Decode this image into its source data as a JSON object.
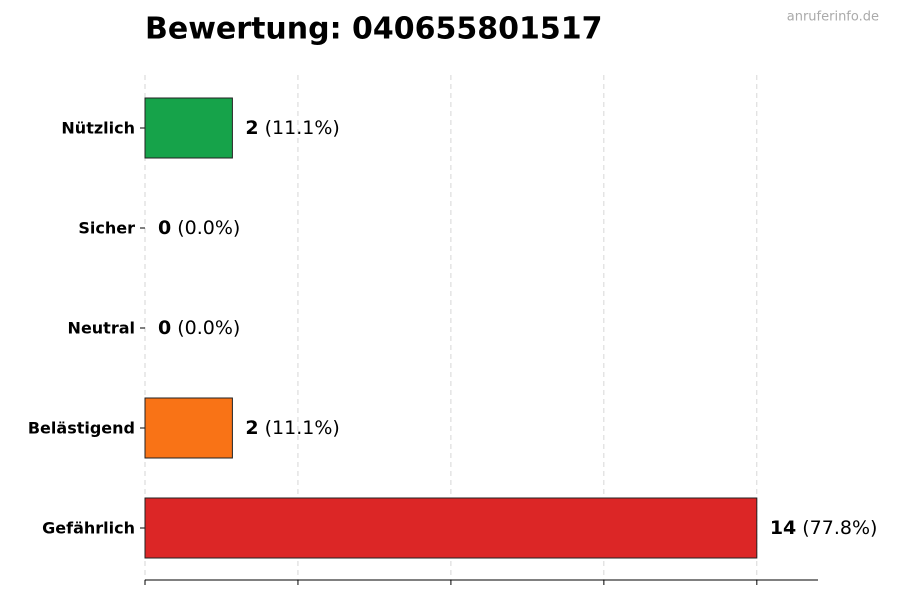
{
  "chart_data": {
    "type": "hbar",
    "title": "Bewertung: 040655801517",
    "watermark": "anruferinfo.de",
    "categories": [
      "Nützlich",
      "Sicher",
      "Neutral",
      "Belästigend",
      "Gefährlich"
    ],
    "values": [
      2,
      0,
      0,
      2,
      14
    ],
    "percents": [
      11.1,
      0.0,
      0.0,
      11.1,
      77.8
    ],
    "percent_labels": [
      "(11.1%)",
      "(0.0%)",
      "(0.0%)",
      "(11.1%)",
      "(77.8%)"
    ],
    "colors": [
      "#16a34a",
      "#9ca3af",
      "#6b7280",
      "#f97316",
      "#dc2626"
    ],
    "xlim": [
      0,
      15.4
    ],
    "xticks": [
      0,
      3.5,
      7,
      10.5,
      14
    ],
    "grid": true
  }
}
